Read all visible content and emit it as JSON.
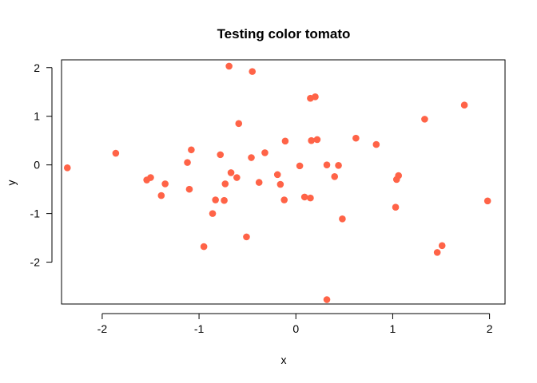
{
  "chart_data": {
    "type": "scatter",
    "title": "Testing color tomato",
    "xlabel": "x",
    "ylabel": "y",
    "xlim": [
      -2.42,
      2.16
    ],
    "ylim": [
      -2.86,
      2.16
    ],
    "xticks": [
      -2,
      -1,
      0,
      1,
      2
    ],
    "yticks": [
      -2,
      -1,
      0,
      1,
      2
    ],
    "xtick_labels": [
      "-2",
      "-1",
      "0",
      "1",
      "2"
    ],
    "ytick_labels": [
      "-2",
      "-1",
      "0",
      "1",
      "2"
    ],
    "grid": false,
    "point_color": "#FF6347",
    "points": [
      [
        -2.36,
        -0.06
      ],
      [
        -1.86,
        0.24
      ],
      [
        -1.54,
        -0.31
      ],
      [
        -1.5,
        -0.26
      ],
      [
        -1.39,
        -0.63
      ],
      [
        -1.35,
        -0.39
      ],
      [
        -1.12,
        0.05
      ],
      [
        -1.1,
        -0.5
      ],
      [
        -1.08,
        0.31
      ],
      [
        -0.95,
        -1.68
      ],
      [
        -0.86,
        -1.0
      ],
      [
        -0.83,
        -0.72
      ],
      [
        -0.78,
        0.21
      ],
      [
        -0.74,
        -0.73
      ],
      [
        -0.73,
        -0.39
      ],
      [
        -0.69,
        2.03
      ],
      [
        -0.67,
        -0.16
      ],
      [
        -0.61,
        -0.26
      ],
      [
        -0.59,
        0.85
      ],
      [
        -0.51,
        -1.48
      ],
      [
        -0.46,
        0.15
      ],
      [
        -0.45,
        1.92
      ],
      [
        -0.38,
        -0.36
      ],
      [
        -0.32,
        0.25
      ],
      [
        -0.19,
        -0.2
      ],
      [
        -0.16,
        -0.4
      ],
      [
        -0.12,
        -0.72
      ],
      [
        -0.11,
        0.49
      ],
      [
        0.04,
        -0.02
      ],
      [
        0.09,
        -0.66
      ],
      [
        0.15,
        -0.68
      ],
      [
        0.15,
        1.37
      ],
      [
        0.16,
        0.5
      ],
      [
        0.2,
        1.4
      ],
      [
        0.22,
        0.52
      ],
      [
        0.32,
        0.0
      ],
      [
        0.32,
        -2.77
      ],
      [
        0.4,
        -0.24
      ],
      [
        0.44,
        -0.01
      ],
      [
        0.48,
        -1.11
      ],
      [
        0.62,
        0.55
      ],
      [
        0.83,
        0.42
      ],
      [
        1.03,
        -0.87
      ],
      [
        1.04,
        -0.3
      ],
      [
        1.06,
        -0.22
      ],
      [
        1.33,
        0.94
      ],
      [
        1.46,
        -1.8
      ],
      [
        1.51,
        -1.66
      ],
      [
        1.74,
        1.23
      ],
      [
        1.98,
        -0.74
      ]
    ]
  }
}
